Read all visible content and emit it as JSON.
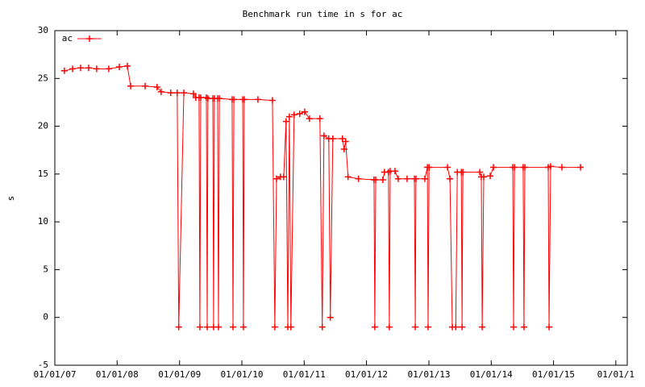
{
  "chart_data": {
    "type": "line",
    "title": "Benchmark run time in s for ac",
    "y_label": "s",
    "legend": "top-left",
    "grid": false,
    "xlim": [
      "2007-01-01",
      "2016-03-08"
    ],
    "xticks": [
      {
        "value": "2007-01-01",
        "label": "01/01/07"
      },
      {
        "value": "2008-01-01",
        "label": "01/01/08"
      },
      {
        "value": "2009-01-01",
        "label": "01/01/09"
      },
      {
        "value": "2010-01-01",
        "label": "01/01/10"
      },
      {
        "value": "2011-01-01",
        "label": "01/01/11"
      },
      {
        "value": "2012-01-01",
        "label": "01/01/12"
      },
      {
        "value": "2013-01-01",
        "label": "01/01/13"
      },
      {
        "value": "2014-01-01",
        "label": "01/01/14"
      },
      {
        "value": "2015-01-01",
        "label": "01/01/15"
      },
      {
        "value": "2016-01-01",
        "label": "01/01/1"
      }
    ],
    "ylim": [
      -5,
      30
    ],
    "yticks": [
      -5,
      0,
      5,
      10,
      15,
      20,
      25,
      30
    ],
    "x": [
      "2007-02-26",
      "2007-04-15",
      "2007-06-01",
      "2007-07-18",
      "2007-09-03",
      "2007-11-13",
      "2008-01-14",
      "2008-03-01",
      "2008-03-20",
      "2008-06-13",
      "2008-08-22",
      "2008-09-15",
      "2008-11-10",
      "2008-12-18",
      "2008-12-27",
      "2009-01-26",
      "2009-03-23",
      "2009-04-06",
      "2009-04-25",
      "2009-04-30",
      "2009-05-05",
      "2009-06-07",
      "2009-06-12",
      "2009-06-16",
      "2009-07-15",
      "2009-07-19",
      "2009-07-24",
      "2009-08-12",
      "2009-08-17",
      "2009-08-22",
      "2009-11-05",
      "2009-11-10",
      "2009-11-15",
      "2010-01-06",
      "2010-01-10",
      "2010-01-15",
      "2010-04-05",
      "2010-06-29",
      "2010-07-13",
      "2010-07-23",
      "2010-08-15",
      "2010-09-03",
      "2010-09-17",
      "2010-09-27",
      "2010-10-06",
      "2010-10-15",
      "2010-11-03",
      "2010-12-06",
      "2011-01-04",
      "2011-02-01",
      "2011-04-03",
      "2011-04-17",
      "2011-04-27",
      "2011-05-25",
      "2011-06-03",
      "2011-06-18",
      "2011-08-13",
      "2011-08-23",
      "2011-09-01",
      "2011-09-15",
      "2011-11-15",
      "2012-02-14",
      "2012-02-19",
      "2012-02-24",
      "2012-04-06",
      "2012-04-15",
      "2012-05-09",
      "2012-05-14",
      "2012-05-19",
      "2012-06-16",
      "2012-07-05",
      "2012-08-26",
      "2012-10-08",
      "2012-10-13",
      "2012-10-17",
      "2012-12-08",
      "2012-12-23",
      "2012-12-27",
      "2013-01-02",
      "2013-04-20",
      "2013-05-04",
      "2013-05-18",
      "2013-06-07",
      "2013-06-16",
      "2013-07-10",
      "2013-07-14",
      "2013-07-19",
      "2013-10-26",
      "2013-11-04",
      "2013-11-09",
      "2013-11-18",
      "2013-12-26",
      "2014-01-14",
      "2014-05-07",
      "2014-05-12",
      "2014-05-17",
      "2014-07-07",
      "2014-07-12",
      "2014-07-17",
      "2014-12-01",
      "2014-12-06",
      "2014-12-15",
      "2015-02-19",
      "2015-06-08"
    ],
    "series": [
      {
        "name": "ac",
        "color": "#ff0000",
        "values": [
          25.8,
          26.0,
          26.1,
          26.1,
          26.0,
          26.0,
          26.2,
          26.3,
          24.2,
          24.2,
          24.1,
          23.6,
          23.5,
          23.5,
          -1,
          23.5,
          23.4,
          23.0,
          23.0,
          -1,
          23.0,
          23.0,
          -1,
          22.9,
          22.9,
          -1,
          22.9,
          22.9,
          -1,
          22.9,
          22.8,
          -1,
          22.8,
          22.8,
          -1,
          22.8,
          22.8,
          22.7,
          -1,
          14.5,
          14.7,
          14.7,
          20.5,
          -1,
          21.0,
          -1,
          21.2,
          21.3,
          21.5,
          20.8,
          20.8,
          -1,
          19.0,
          18.7,
          0,
          18.7,
          18.7,
          17.6,
          18.4,
          14.7,
          14.5,
          14.4,
          -1,
          14.4,
          14.4,
          15.2,
          15.2,
          -1,
          15.3,
          15.3,
          14.5,
          14.5,
          14.5,
          -1,
          14.5,
          14.5,
          15.7,
          -1,
          15.7,
          15.7,
          14.5,
          -1,
          -1,
          15.2,
          15.2,
          -1,
          15.2,
          15.2,
          14.7,
          -1,
          14.7,
          14.8,
          15.7,
          15.7,
          -1,
          15.7,
          15.7,
          -1,
          15.7,
          15.7,
          -1,
          15.8,
          15.7,
          15.7
        ]
      }
    ]
  }
}
